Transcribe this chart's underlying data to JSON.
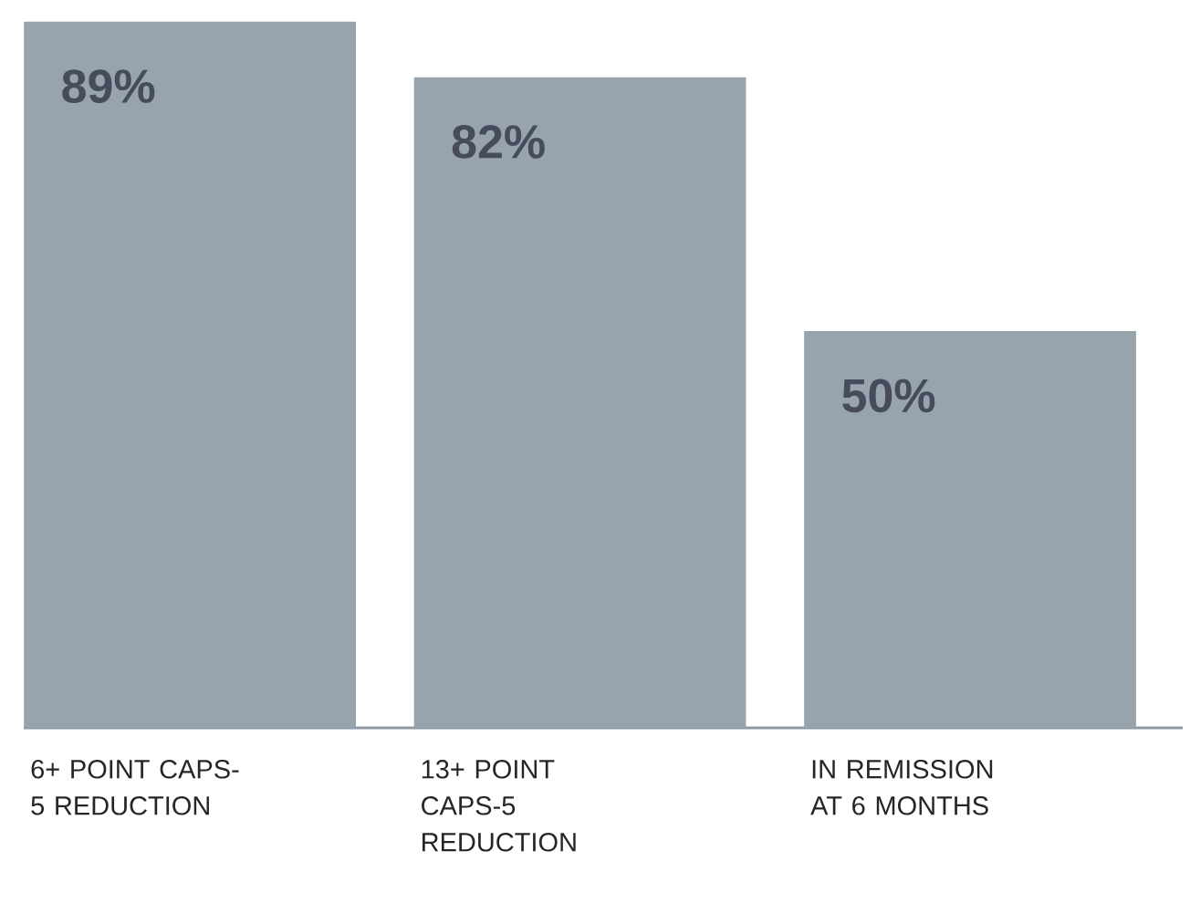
{
  "chart_data": {
    "type": "bar",
    "categories": [
      "6+ POINT CAPS-5 REDUCTION",
      "13+ POINT CAPS-5 REDUCTION",
      "IN REMISSION AT 6 MONTHS"
    ],
    "values": [
      89,
      82,
      50
    ],
    "color": "#97a4ad",
    "data_labels": true,
    "value_labels": [
      "89%",
      "82%",
      "50%"
    ]
  }
}
